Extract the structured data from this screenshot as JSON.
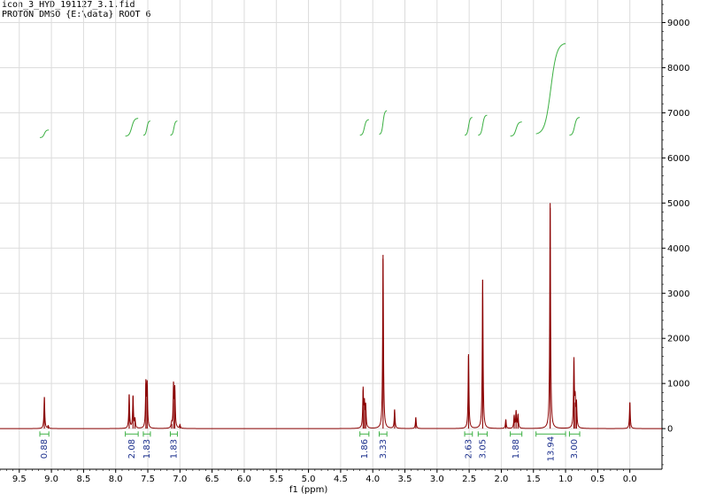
{
  "header": {
    "line1": "icon_3_HYD_191127_3.1.fid",
    "line2": "PROTON DMSO {E:\\data} ROOT 6"
  },
  "chart_data": {
    "type": "line",
    "title": "",
    "xlabel": "f1 (ppm)",
    "ylabel": "",
    "xlim": [
      9.8,
      -0.5
    ],
    "ylim": [
      -900,
      9500
    ],
    "x_reversed": true,
    "grid": true,
    "x_ticks": [
      9.5,
      9.0,
      8.5,
      8.0,
      7.5,
      7.0,
      6.5,
      6.0,
      5.5,
      5.0,
      4.5,
      4.0,
      3.5,
      3.0,
      2.5,
      2.0,
      1.5,
      1.0,
      0.5,
      0.0
    ],
    "x_tick_labels": [
      "9.5",
      "9.0",
      "8.5",
      "8.0",
      "7.5",
      "7.0",
      "6.5",
      "6.0",
      "5.5",
      "5.0",
      "4.5",
      "4.0",
      "3.5",
      "3.0",
      "2.5",
      "2.0",
      "1.5",
      "1.0",
      "0.5",
      "0.0"
    ],
    "y_ticks": [
      0,
      1000,
      2000,
      3000,
      4000,
      5000,
      6000,
      7000,
      8000,
      9000
    ],
    "y_tick_labels": [
      "0",
      "1000",
      "2000",
      "3000",
      "4000",
      "5000",
      "6000",
      "7000",
      "8000",
      "9000"
    ],
    "series_color": "#8b0000",
    "integral_color": "#3cb043",
    "integral_label_color": "#1a2e8c",
    "peaks": [
      {
        "ppm": 9.11,
        "height": 700
      },
      {
        "ppm": 9.05,
        "height": 60
      },
      {
        "ppm": 7.79,
        "height": 760
      },
      {
        "ppm": 7.73,
        "height": 720
      },
      {
        "ppm": 7.7,
        "height": 200
      },
      {
        "ppm": 7.53,
        "height": 1000
      },
      {
        "ppm": 7.51,
        "height": 950
      },
      {
        "ppm": 7.13,
        "height": 100
      },
      {
        "ppm": 7.1,
        "height": 950
      },
      {
        "ppm": 7.08,
        "height": 850
      },
      {
        "ppm": 7.0,
        "height": 80
      },
      {
        "ppm": 4.15,
        "height": 850
      },
      {
        "ppm": 4.13,
        "height": 520
      },
      {
        "ppm": 4.11,
        "height": 480
      },
      {
        "ppm": 3.84,
        "height": 3850
      },
      {
        "ppm": 3.66,
        "height": 420
      },
      {
        "ppm": 3.33,
        "height": 250
      },
      {
        "ppm": 2.51,
        "height": 1650
      },
      {
        "ppm": 2.29,
        "height": 3300
      },
      {
        "ppm": 1.93,
        "height": 200
      },
      {
        "ppm": 1.8,
        "height": 280
      },
      {
        "ppm": 1.77,
        "height": 380
      },
      {
        "ppm": 1.74,
        "height": 300
      },
      {
        "ppm": 1.24,
        "height": 5000
      },
      {
        "ppm": 0.87,
        "height": 1500
      },
      {
        "ppm": 0.85,
        "height": 580
      },
      {
        "ppm": 0.83,
        "height": 520
      },
      {
        "ppm": 0.0,
        "height": 580
      }
    ],
    "integrals": [
      {
        "from": 9.18,
        "to": 9.04,
        "label": "0.88",
        "curve_bottom": 6450,
        "curve_top": 6620
      },
      {
        "from": 7.85,
        "to": 7.65,
        "label": "2.08",
        "curve_bottom": 6480,
        "curve_top": 6880
      },
      {
        "from": 7.57,
        "to": 7.46,
        "label": "1.83",
        "curve_bottom": 6500,
        "curve_top": 6820
      },
      {
        "from": 7.15,
        "to": 7.04,
        "label": "1.83",
        "curve_bottom": 6500,
        "curve_top": 6820
      },
      {
        "from": 4.2,
        "to": 4.06,
        "label": "1.86",
        "curve_bottom": 6500,
        "curve_top": 6850
      },
      {
        "from": 3.9,
        "to": 3.78,
        "label": "3.33",
        "curve_bottom": 6520,
        "curve_top": 7050
      },
      {
        "from": 2.57,
        "to": 2.45,
        "label": "2.63",
        "curve_bottom": 6500,
        "curve_top": 6900
      },
      {
        "from": 2.36,
        "to": 2.22,
        "label": "3.05",
        "curve_bottom": 6500,
        "curve_top": 6950
      },
      {
        "from": 1.86,
        "to": 1.68,
        "label": "1.88",
        "curve_bottom": 6480,
        "curve_top": 6800
      },
      {
        "from": 1.46,
        "to": 1.0,
        "label": "13.94",
        "curve_bottom": 6520,
        "curve_top": 8550
      },
      {
        "from": 0.94,
        "to": 0.78,
        "label": "3.00",
        "curve_bottom": 6500,
        "curve_top": 6900
      }
    ]
  }
}
